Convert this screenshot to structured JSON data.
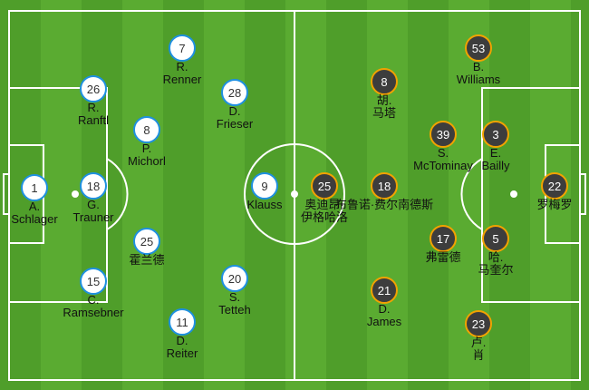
{
  "colors": {
    "home_fill": "#ffffff",
    "home_border": "#1e90e0",
    "away_fill": "#3d3d3d",
    "away_border": "#f2a200"
  },
  "home": [
    {
      "number": "1",
      "name": [
        "A.",
        "Schlager"
      ]
    },
    {
      "number": "26",
      "name": [
        "R.",
        "Ranftl"
      ]
    },
    {
      "number": "18",
      "name": [
        "G.",
        "Trauner"
      ]
    },
    {
      "number": "15",
      "name": [
        "C.",
        "Ramsebner"
      ]
    },
    {
      "number": "8",
      "name": [
        "P.",
        "Michorl"
      ]
    },
    {
      "number": "25",
      "name": [
        "霍兰德",
        ""
      ]
    },
    {
      "number": "7",
      "name": [
        "R.",
        "Renner"
      ]
    },
    {
      "number": "28",
      "name": [
        "D.",
        "Frieser"
      ]
    },
    {
      "number": "20",
      "name": [
        "S.",
        "Tetteh"
      ]
    },
    {
      "number": "11",
      "name": [
        "D.",
        "Reiter"
      ]
    },
    {
      "number": "9",
      "name": [
        "Klauss",
        ""
      ]
    }
  ],
  "away": [
    {
      "number": "53",
      "name": [
        "B.",
        "Williams"
      ]
    },
    {
      "number": "8",
      "name": [
        "胡.",
        "马塔"
      ]
    },
    {
      "number": "39",
      "name": [
        "S.",
        "McTominay"
      ]
    },
    {
      "number": "3",
      "name": [
        "E.",
        "Bailly"
      ]
    },
    {
      "number": "22",
      "name": [
        "罗梅罗",
        ""
      ]
    },
    {
      "number": "25",
      "name": [
        "奥迪昂·",
        "伊格哈洛"
      ]
    },
    {
      "number": "18",
      "name": [
        "布鲁诺·费尔南德斯",
        ""
      ]
    },
    {
      "number": "17",
      "name": [
        "弗雷德",
        ""
      ]
    },
    {
      "number": "5",
      "name": [
        "哈.",
        "马奎尔"
      ]
    },
    {
      "number": "21",
      "name": [
        "D.",
        "James"
      ]
    },
    {
      "number": "23",
      "name": [
        "卢.",
        "肖"
      ]
    }
  ]
}
